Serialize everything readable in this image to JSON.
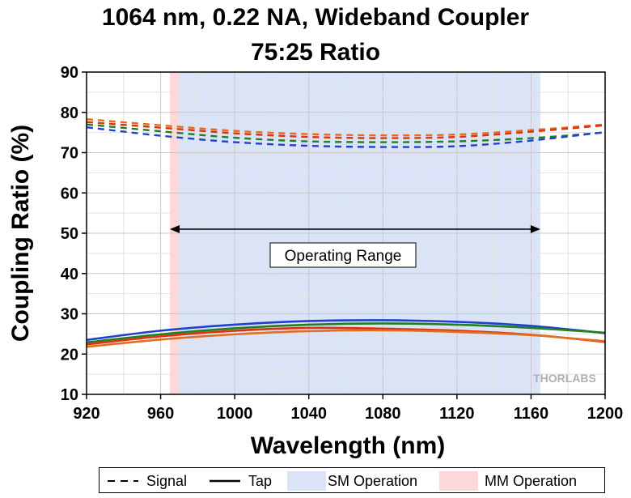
{
  "title_line1": "1064 nm, 0.22 NA, Wideband Coupler",
  "title_line2": "75:25 Ratio",
  "brand_watermark": "THORLABS",
  "annotation": "Operating Range",
  "legend": {
    "signal": "Signal",
    "tap": "Tap",
    "sm": "SM Operation",
    "mm": "MM Operation"
  },
  "chart_data": {
    "type": "line",
    "title": "1064 nm, 0.22 NA, Wideband Coupler 75:25 Ratio",
    "xlabel": "Wavelength (nm)",
    "ylabel": "Coupling Ratio (%)",
    "xlim": [
      920,
      1200
    ],
    "ylim": [
      10,
      90
    ],
    "x_ticks": [
      920,
      960,
      1000,
      1040,
      1080,
      1120,
      1160,
      1200
    ],
    "y_ticks": [
      10,
      20,
      30,
      40,
      50,
      60,
      70,
      80,
      90
    ],
    "grid": true,
    "legend_position": "bottom",
    "shaded_regions": [
      {
        "name": "SM Operation",
        "x": [
          970,
          1165
        ],
        "color": "#dbe3f7"
      },
      {
        "name": "MM Operation",
        "x": [
          965,
          970
        ],
        "color": "#fcd8d8"
      }
    ],
    "operating_range": [
      965,
      1165
    ],
    "operating_range_y": 51,
    "series": [
      {
        "style": "dashed",
        "color": "#e07020",
        "x": [
          920,
          960,
          1000,
          1040,
          1080,
          1120,
          1160,
          1200
        ],
        "values": [
          78.3,
          76.8,
          75.4,
          74.6,
          74.3,
          74.5,
          75.6,
          77.0
        ]
      },
      {
        "style": "dashed",
        "color": "#e03010",
        "x": [
          920,
          960,
          1000,
          1040,
          1080,
          1120,
          1160,
          1200
        ],
        "values": [
          77.6,
          76.2,
          74.8,
          73.9,
          73.6,
          73.9,
          75.2,
          76.8
        ]
      },
      {
        "style": "dashed",
        "color": "#208020",
        "x": [
          920,
          960,
          1000,
          1040,
          1080,
          1120,
          1160,
          1200
        ],
        "values": [
          77.0,
          75.3,
          73.7,
          72.8,
          72.6,
          72.8,
          73.6,
          75.0
        ]
      },
      {
        "style": "dashed",
        "color": "#2040d0",
        "x": [
          920,
          960,
          1000,
          1040,
          1080,
          1120,
          1160,
          1200
        ],
        "values": [
          76.3,
          74.2,
          72.6,
          71.7,
          71.4,
          71.6,
          73.0,
          75.1
        ]
      },
      {
        "style": "solid",
        "color": "#2040d0",
        "x": [
          920,
          960,
          1000,
          1040,
          1080,
          1120,
          1160,
          1200
        ],
        "values": [
          23.5,
          25.8,
          27.3,
          28.2,
          28.4,
          28.0,
          27.0,
          25.2
        ]
      },
      {
        "style": "solid",
        "color": "#208020",
        "x": [
          920,
          960,
          1000,
          1040,
          1080,
          1120,
          1160,
          1200
        ],
        "values": [
          22.9,
          24.9,
          26.4,
          27.3,
          27.6,
          27.3,
          26.5,
          25.3
        ]
      },
      {
        "style": "solid",
        "color": "#e03010",
        "x": [
          920,
          960,
          1000,
          1040,
          1080,
          1120,
          1160,
          1200
        ],
        "values": [
          22.4,
          24.4,
          25.8,
          26.5,
          26.3,
          25.8,
          24.8,
          23.0
        ]
      },
      {
        "style": "solid",
        "color": "#e07020",
        "x": [
          920,
          960,
          1000,
          1040,
          1080,
          1120,
          1160,
          1200
        ],
        "values": [
          21.8,
          23.6,
          24.9,
          25.7,
          25.9,
          25.5,
          24.7,
          23.2
        ]
      }
    ]
  }
}
